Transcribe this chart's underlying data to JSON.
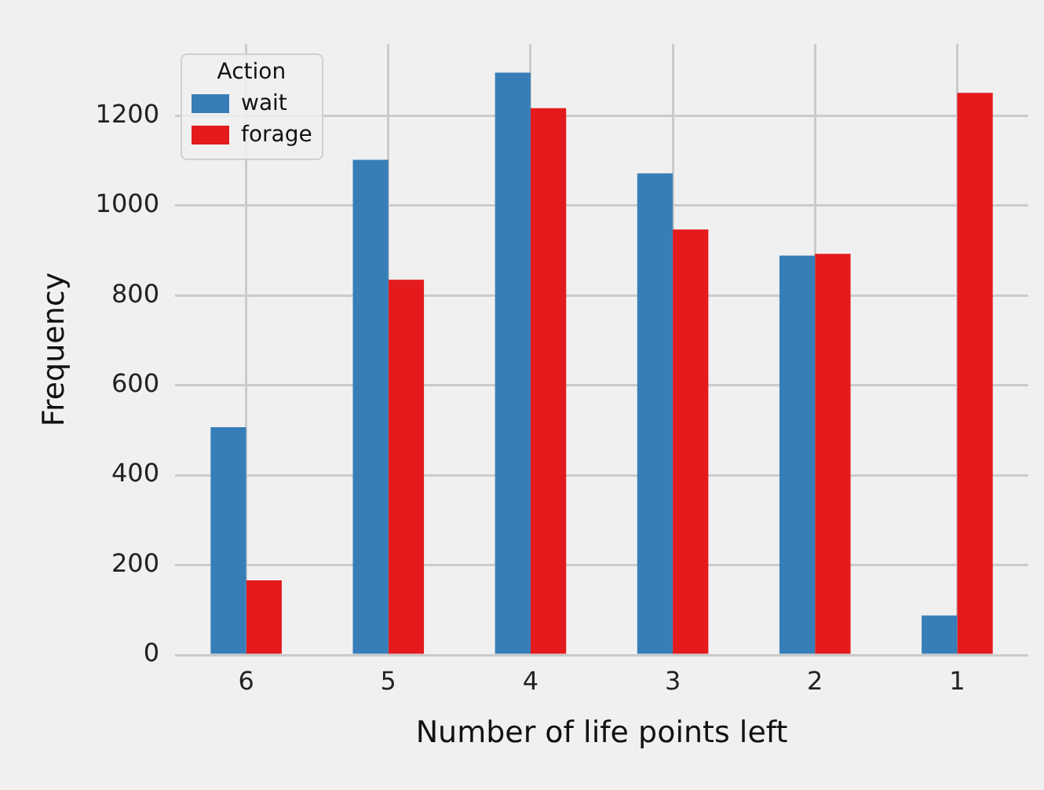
{
  "chart_data": {
    "type": "bar",
    "xlabel": "Number of life points left",
    "ylabel": "Frequency",
    "legend_title": "Action",
    "categories": [
      "6",
      "5",
      "4",
      "3",
      "2",
      "1"
    ],
    "series": [
      {
        "name": "wait",
        "color": "#377eb8",
        "values": [
          507,
          1102,
          1296,
          1072,
          889,
          88
        ]
      },
      {
        "name": "forage",
        "color": "#e41a1c",
        "values": [
          166,
          835,
          1217,
          947,
          893,
          1251
        ]
      }
    ],
    "ylim": [
      0,
      1360
    ],
    "yticks": [
      0,
      200,
      400,
      600,
      800,
      1000,
      1200
    ],
    "grid": true,
    "legend": "top left"
  }
}
